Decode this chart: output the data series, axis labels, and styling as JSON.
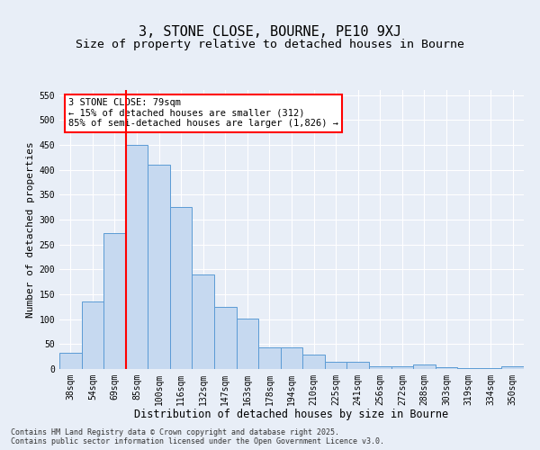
{
  "title": "3, STONE CLOSE, BOURNE, PE10 9XJ",
  "subtitle": "Size of property relative to detached houses in Bourne",
  "xlabel": "Distribution of detached houses by size in Bourne",
  "ylabel": "Number of detached properties",
  "categories": [
    "38sqm",
    "54sqm",
    "69sqm",
    "85sqm",
    "100sqm",
    "116sqm",
    "132sqm",
    "147sqm",
    "163sqm",
    "178sqm",
    "194sqm",
    "210sqm",
    "225sqm",
    "241sqm",
    "256sqm",
    "272sqm",
    "288sqm",
    "303sqm",
    "319sqm",
    "334sqm",
    "350sqm"
  ],
  "values": [
    33,
    135,
    273,
    449,
    410,
    325,
    190,
    124,
    101,
    43,
    43,
    29,
    15,
    15,
    6,
    6,
    9,
    4,
    2,
    2,
    6
  ],
  "bar_color": "#c6d9f0",
  "bar_edge_color": "#5b9bd5",
  "vline_x": 2.5,
  "vline_color": "red",
  "annotation_text": "3 STONE CLOSE: 79sqm\n← 15% of detached houses are smaller (312)\n85% of semi-detached houses are larger (1,826) →",
  "annotation_box_color": "white",
  "annotation_box_edge_color": "red",
  "ylim": [
    0,
    560
  ],
  "yticks": [
    0,
    50,
    100,
    150,
    200,
    250,
    300,
    350,
    400,
    450,
    500,
    550
  ],
  "background_color": "#e8eef7",
  "grid_color": "white",
  "footer_text": "Contains HM Land Registry data © Crown copyright and database right 2025.\nContains public sector information licensed under the Open Government Licence v3.0.",
  "title_fontsize": 11,
  "subtitle_fontsize": 9.5,
  "xlabel_fontsize": 8.5,
  "ylabel_fontsize": 8,
  "tick_fontsize": 7,
  "annotation_fontsize": 7.5,
  "footer_fontsize": 6
}
